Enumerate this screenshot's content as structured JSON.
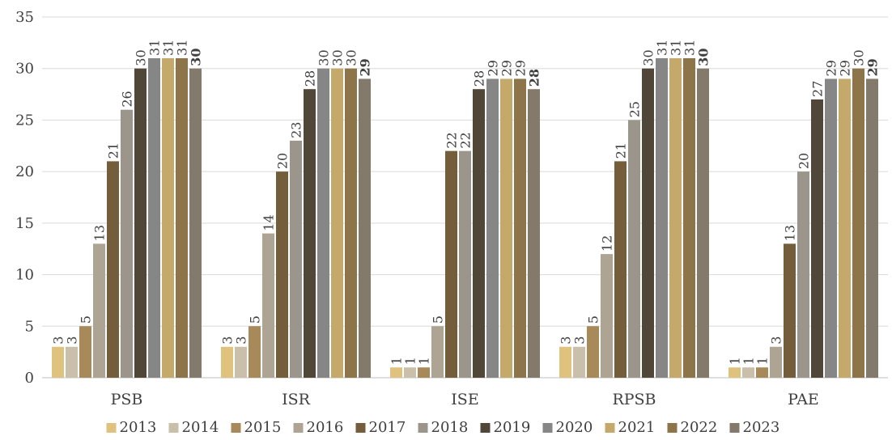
{
  "chart_data": {
    "type": "bar",
    "categories": [
      "PSB",
      "ISR",
      "ISE",
      "RPSB",
      "PAE"
    ],
    "series": [
      {
        "name": "2013",
        "color": "#dfc27d",
        "values": [
          3,
          3,
          1,
          3,
          1
        ]
      },
      {
        "name": "2014",
        "color": "#c9bfaa",
        "values": [
          3,
          3,
          1,
          3,
          1
        ]
      },
      {
        "name": "2015",
        "color": "#a88a5a",
        "values": [
          5,
          5,
          1,
          5,
          1
        ]
      },
      {
        "name": "2016",
        "color": "#ada493",
        "values": [
          13,
          14,
          5,
          12,
          3
        ]
      },
      {
        "name": "2017",
        "color": "#735d3b",
        "values": [
          21,
          20,
          22,
          21,
          13
        ]
      },
      {
        "name": "2018",
        "color": "#9b958c",
        "values": [
          26,
          23,
          22,
          25,
          20
        ]
      },
      {
        "name": "2019",
        "color": "#514738",
        "values": [
          30,
          28,
          28,
          30,
          27
        ]
      },
      {
        "name": "2020",
        "color": "#868686",
        "values": [
          31,
          30,
          29,
          31,
          29
        ]
      },
      {
        "name": "2021",
        "color": "#c4a96b",
        "values": [
          31,
          30,
          29,
          31,
          29
        ]
      },
      {
        "name": "2022",
        "color": "#8e7449",
        "values": [
          31,
          30,
          29,
          31,
          30
        ]
      },
      {
        "name": "2023",
        "color": "#847a6b",
        "values": [
          30,
          29,
          28,
          30,
          29
        ]
      }
    ],
    "y_ticks": [
      "0",
      "5",
      "10",
      "15",
      "20",
      "25",
      "30",
      "35"
    ],
    "ylim": [
      0,
      35
    ],
    "grid": true,
    "legend_position": "bottom",
    "last_series_labels_bold": true
  }
}
